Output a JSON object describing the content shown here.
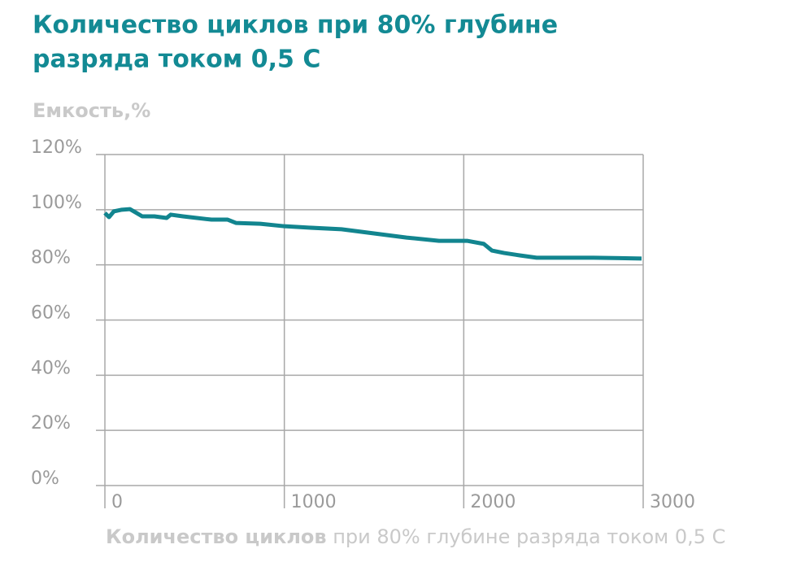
{
  "chart_data": {
    "type": "line",
    "title": [
      "Количество циклов при 80% глубине",
      "разряда током 0,5 C"
    ],
    "y_label": "Емкость,%",
    "x_label": [
      "Количество циклов",
      "при 80% глубине разряда током 0,5 C"
    ],
    "x": [
      0,
      23,
      50,
      95,
      140,
      177,
      208,
      276,
      344,
      367,
      435,
      594,
      684,
      730,
      866,
      1001,
      1137,
      1319,
      1500,
      1681,
      1862,
      2021,
      2112,
      2157,
      2225,
      2316,
      2406,
      2588,
      2724,
      2991
    ],
    "series": [
      {
        "name": "Емкость",
        "color": "#12858f",
        "values": [
          98.8,
          97.3,
          99.4,
          100,
          100.2,
          98.8,
          97.6,
          97.6,
          97,
          98.2,
          97.6,
          96.4,
          96.4,
          95.2,
          94.9,
          94,
          93.5,
          92.9,
          91.4,
          89.9,
          88.7,
          88.7,
          87.6,
          85.2,
          84.3,
          83.4,
          82.6,
          82.6,
          82.6,
          82.3
        ]
      }
    ],
    "xlim": [
      0,
      3000
    ],
    "xticks": [
      0,
      1000,
      2000,
      3000
    ],
    "ylim": [
      0,
      120
    ],
    "yticks": [
      {
        "value": 0,
        "label": "0%"
      },
      {
        "value": 20,
        "label": "20%"
      },
      {
        "value": 40,
        "label": "40%"
      },
      {
        "value": 60,
        "label": "60%"
      },
      {
        "value": 80,
        "label": "80%"
      },
      {
        "value": 100,
        "label": "100%"
      },
      {
        "value": 120,
        "label": "120%"
      }
    ],
    "grid": true
  }
}
